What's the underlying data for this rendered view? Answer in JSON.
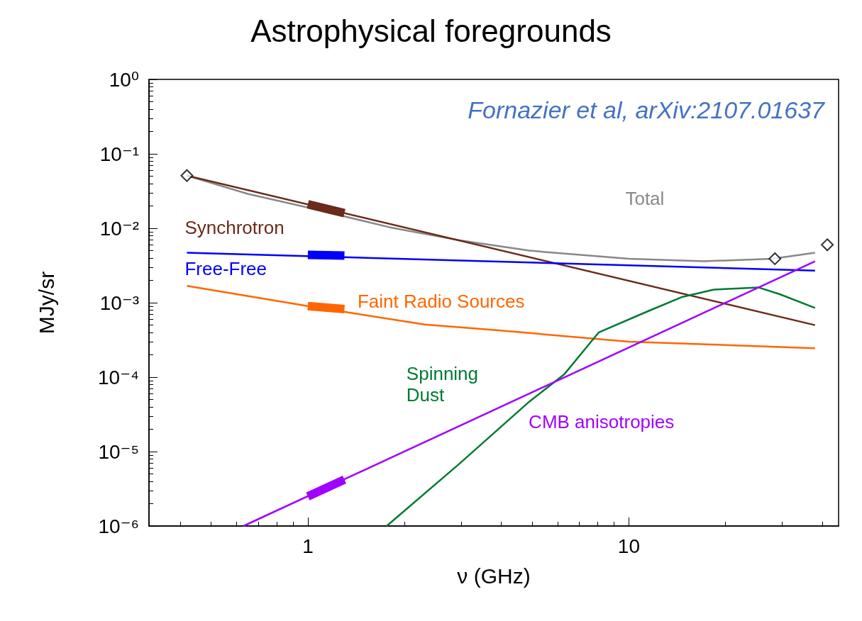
{
  "chart_data": {
    "type": "line",
    "title": "Astrophysical foregrounds",
    "xlabel": "ν (GHz)",
    "ylabel": "MJy/sr",
    "annotations": [
      "Fornazier et al, arXiv:2107.01637"
    ],
    "log": "xy",
    "grid": false,
    "legend": false,
    "xlim": [
      0.32,
      45
    ],
    "xticks": [
      1,
      10
    ],
    "ylim": [
      1e-06,
      1
    ],
    "yticks": [
      {
        "value": 1e-06,
        "label": "10⁻⁶"
      },
      {
        "value": 1e-05,
        "label": "10⁻⁵"
      },
      {
        "value": 0.0001,
        "label": "10⁻⁴"
      },
      {
        "value": 0.001,
        "label": "10⁻³"
      },
      {
        "value": 0.01,
        "label": "10⁻²"
      },
      {
        "value": 0.1,
        "label": "10⁻¹"
      },
      {
        "value": 1,
        "label": "10⁰"
      }
    ],
    "series": [
      {
        "name": "Total",
        "color": "#888888",
        "x": [
          0.42,
          0.65,
          1,
          1.8,
          2.97,
          4.9,
          10,
          17.1,
          28,
          38
        ],
        "values": [
          0.051,
          0.029,
          0.019,
          0.0103,
          0.0069,
          0.005,
          0.0039,
          0.0036,
          0.0039,
          0.0047
        ]
      },
      {
        "name": "Synchrotron",
        "color": "#6b2a1a",
        "x": [
          0.42,
          38
        ],
        "values": [
          0.051,
          0.0005
        ]
      },
      {
        "name": "Free-Free",
        "color": "#0000ff",
        "x": [
          0.42,
          38
        ],
        "values": [
          0.0047,
          0.0027
        ]
      },
      {
        "name": "Faint Radio Sources",
        "color": "#ff6600",
        "x": [
          0.42,
          1,
          2.31,
          3.81,
          10,
          38
        ],
        "values": [
          0.00168,
          0.0009,
          0.00051,
          0.00043,
          0.0003,
          0.000245
        ]
      },
      {
        "name": "Spinning\nDust",
        "color": "#007a33",
        "x": [
          1.76,
          2.97,
          4.9,
          6.3,
          8.06,
          11.4,
          14.7,
          18.4,
          25.4,
          29.5,
          38
        ],
        "values": [
          1e-06,
          6.9e-06,
          4.7e-05,
          0.00011,
          0.0004,
          0.00076,
          0.0012,
          0.0015,
          0.0016,
          0.0013,
          0.00085
        ]
      },
      {
        "name": "CMB anisotropies",
        "color": "#a000ff",
        "x": [
          0.63,
          38
        ],
        "values": [
          1e-06,
          0.0036
        ]
      },
      {
        "color": "#6b2a1a",
        "x": [
          1,
          1.3
        ],
        "values": [
          0.021,
          0.016
        ]
      },
      {
        "color": "#0000ff",
        "x": [
          1,
          1.3
        ],
        "values": [
          0.0044,
          0.0043
        ]
      },
      {
        "color": "#ff6600",
        "x": [
          1,
          1.3
        ],
        "values": [
          0.0009,
          0.00082
        ]
      },
      {
        "color": "#a000ff",
        "x": [
          1,
          1.3
        ],
        "values": [
          2.5e-06,
          4.2e-06
        ]
      },
      {
        "type": "scatter",
        "marker": "diamond",
        "color": "#000000",
        "x": [
          0.42,
          28.5,
          41.5
        ],
        "values": [
          0.051,
          0.0039,
          0.006
        ]
      }
    ]
  }
}
